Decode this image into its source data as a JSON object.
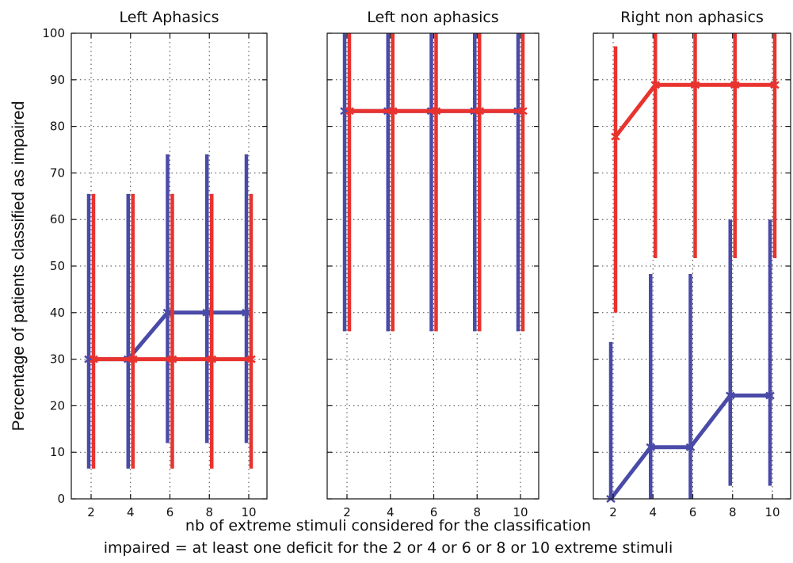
{
  "chart_data": {
    "type": "line",
    "ylabel": "Percentage of patients classified as impaired",
    "xlabel": "nb of extreme stimuli considered for the classification",
    "note": "impaired = at least one deficit for the 2 or 4 or 6 or 8 or 10 extreme stimuli",
    "ylim": [
      0,
      100
    ],
    "yticks": [
      0,
      10,
      20,
      30,
      40,
      50,
      60,
      70,
      80,
      90,
      100
    ],
    "xticks": [
      2,
      4,
      6,
      8,
      10
    ],
    "grid": true,
    "colors": {
      "blue": "#4a4aa8",
      "red": "#e8332f"
    },
    "panels": [
      {
        "title": "Left Aphasics",
        "series": [
          {
            "color": "blue",
            "x": [
              2,
              4,
              6,
              8,
              10
            ],
            "y": [
              30,
              30,
              40,
              40,
              40
            ],
            "err_low": [
              6.5,
              6.5,
              12,
              12,
              12
            ],
            "err_high": [
              65.5,
              65.5,
              74,
              74,
              74
            ]
          },
          {
            "color": "red",
            "x": [
              2,
              4,
              6,
              8,
              10
            ],
            "y": [
              30,
              30,
              30,
              30,
              30
            ],
            "err_low": [
              6.5,
              6.5,
              6.5,
              6.5,
              6.5
            ],
            "err_high": [
              65.5,
              65.5,
              65.5,
              65.5,
              65.5
            ]
          }
        ]
      },
      {
        "title": "Left non aphasics",
        "series": [
          {
            "color": "blue",
            "x": [
              2,
              4,
              6,
              8,
              10
            ],
            "y": [
              83.3,
              83.3,
              83.3,
              83.3,
              83.3
            ],
            "err_low": [
              36,
              36,
              36,
              36,
              36
            ],
            "err_high": [
              100,
              100,
              100,
              100,
              100
            ]
          },
          {
            "color": "red",
            "x": [
              2,
              4,
              6,
              8,
              10
            ],
            "y": [
              83.3,
              83.3,
              83.3,
              83.3,
              83.3
            ],
            "err_low": [
              36,
              36,
              36,
              36,
              36
            ],
            "err_high": [
              100,
              100,
              100,
              100,
              100
            ]
          }
        ]
      },
      {
        "title": "Right non aphasics",
        "series": [
          {
            "color": "blue",
            "x": [
              2,
              4,
              6,
              8,
              10
            ],
            "y": [
              0,
              11.1,
              11.1,
              22.2,
              22.2
            ],
            "err_low": [
              0,
              0,
              0,
              2.8,
              2.8
            ],
            "err_high": [
              33.7,
              48.3,
              48.3,
              60,
              60
            ]
          },
          {
            "color": "red",
            "x": [
              2,
              4,
              6,
              8,
              10
            ],
            "y": [
              77.8,
              88.9,
              88.9,
              88.9,
              88.9
            ],
            "err_low": [
              40,
              51.7,
              51.7,
              51.7,
              51.7
            ],
            "err_high": [
              97.2,
              100,
              100,
              100,
              100
            ]
          }
        ]
      }
    ]
  }
}
